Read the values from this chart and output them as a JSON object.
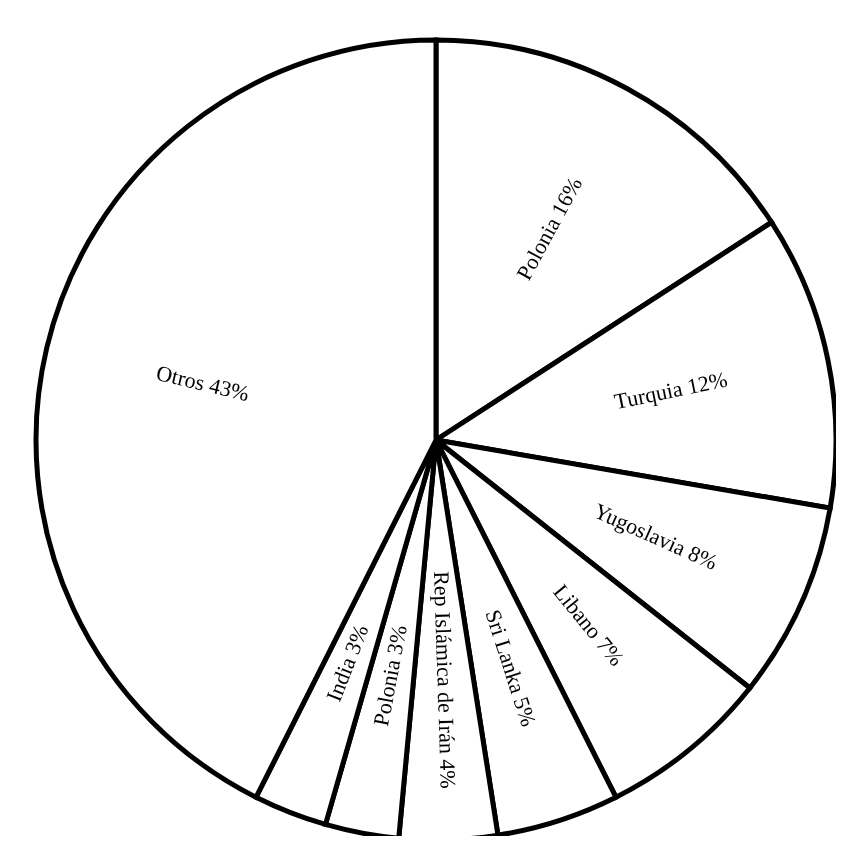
{
  "chart_data": {
    "type": "pie",
    "categories": [
      "Polonia",
      "Turquia",
      "Yugoslavia",
      "Libano",
      "Sri Lanka",
      "Rep Islámica de Irán",
      "Polonia",
      "India",
      "Otros"
    ],
    "values": [
      16,
      12,
      8,
      7,
      5,
      4,
      3,
      3,
      43
    ],
    "value_labels": [
      "16%",
      "12%",
      "8%",
      "7%",
      "5%",
      "4%",
      "3%",
      "3%",
      "43%"
    ],
    "colors": [
      "#ffffff",
      "#ffffff",
      "#ffffff",
      "#ffffff",
      "#ffffff",
      "#ffffff",
      "#ffffff",
      "#ffffff",
      "#ffffff"
    ],
    "legend": false
  }
}
